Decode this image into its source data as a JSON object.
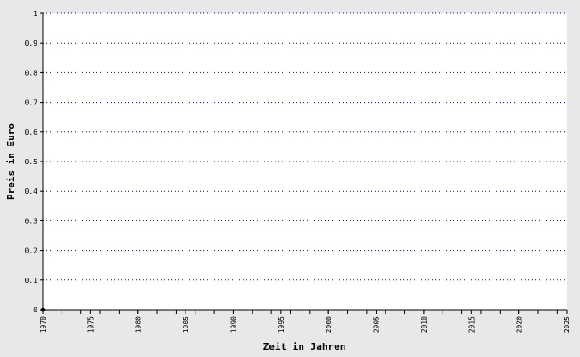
{
  "chart_data": {
    "type": "line",
    "xlabel": "Zeit in Jahren",
    "ylabel": "Preis in Euro",
    "x": [
      1970
    ],
    "series": [
      {
        "color": "#000000",
        "values": [
          0
        ]
      }
    ],
    "xlim": [
      1970,
      2025
    ],
    "xticks": [
      1970,
      1975,
      1980,
      1985,
      1990,
      1995,
      2000,
      2005,
      2010,
      2015,
      2020,
      2025
    ],
    "xminorticks": [
      1970,
      1972,
      1974,
      1976,
      1978,
      1980,
      1982,
      1984,
      1986,
      1988,
      1990,
      1992,
      1994,
      1996,
      1998,
      2000,
      2002,
      2004,
      2006,
      2008,
      2010,
      2012,
      2014,
      2016,
      2018,
      2020,
      2022,
      2024
    ],
    "ylim": [
      0,
      1
    ],
    "yticks": [
      0,
      0.1,
      0.2,
      0.3,
      0.4,
      0.5,
      0.6,
      0.7,
      0.8,
      0.9,
      1
    ],
    "grid": true,
    "grid_color": "#0000cc"
  }
}
